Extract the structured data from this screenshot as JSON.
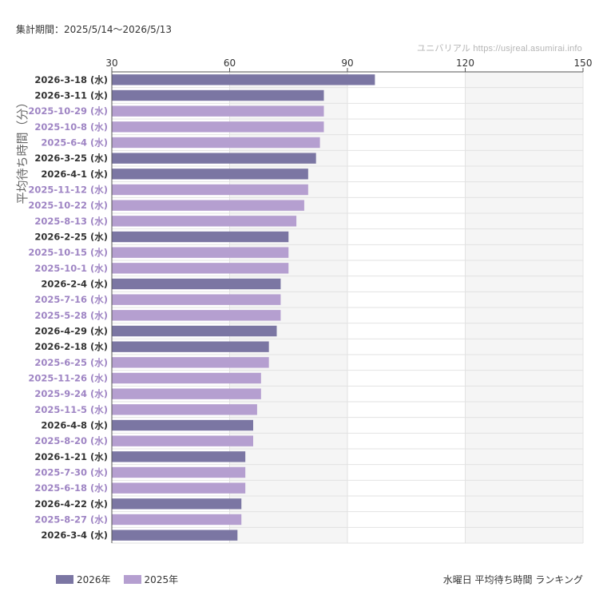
{
  "header": {
    "period": "集計期間：2025/5/14〜2026/5/13",
    "source": "ユニバリアル  https://usjreal.asumirai.info"
  },
  "footer": {
    "title": "水曜日 平均待ち時間 ランキング"
  },
  "colors": {
    "y2026": "#7b76a3",
    "y2025": "#b59fd0",
    "label2026": "#333333",
    "label2025": "#9f85c4",
    "band": "#f5f5f5",
    "grid": "#e2e2e2"
  },
  "chart_data": {
    "type": "bar",
    "orientation": "horizontal",
    "xlim": [
      30,
      150
    ],
    "xticks": [
      30,
      60,
      90,
      120,
      150
    ],
    "xtick_labels": [
      "30",
      "60",
      "90",
      "120",
      "150"
    ],
    "ylabel": "平均待ち時間（分）",
    "xlabel": "",
    "title": "",
    "grid": true,
    "legend": {
      "position": "bottom-left",
      "entries": [
        {
          "name": "2026年",
          "color": "#7b76a3"
        },
        {
          "name": "2025年",
          "color": "#b59fd0"
        }
      ]
    },
    "categories": [
      "2026-3-18 (水)",
      "2026-3-11 (水)",
      "2025-10-29 (水)",
      "2025-10-8 (水)",
      "2025-6-4 (水)",
      "2026-3-25 (水)",
      "2026-4-1 (水)",
      "2025-11-12 (水)",
      "2025-10-22 (水)",
      "2025-8-13 (水)",
      "2026-2-25 (水)",
      "2025-10-15 (水)",
      "2025-10-1 (水)",
      "2026-2-4 (水)",
      "2025-7-16 (水)",
      "2025-5-28 (水)",
      "2026-4-29 (水)",
      "2026-2-18 (水)",
      "2025-6-25 (水)",
      "2025-11-26 (水)",
      "2025-9-24 (水)",
      "2025-11-5 (水)",
      "2026-4-8 (水)",
      "2025-8-20 (水)",
      "2026-1-21 (水)",
      "2025-7-30 (水)",
      "2025-6-18 (水)",
      "2026-4-22 (水)",
      "2025-8-27 (水)",
      "2026-3-4 (水)"
    ],
    "values": [
      97,
      84,
      84,
      84,
      83,
      82,
      80,
      80,
      79,
      77,
      75,
      75,
      75,
      73,
      73,
      73,
      72,
      70,
      70,
      68,
      68,
      67,
      66,
      66,
      64,
      64,
      64,
      63,
      63,
      62
    ],
    "years": [
      "2026",
      "2026",
      "2025",
      "2025",
      "2025",
      "2026",
      "2026",
      "2025",
      "2025",
      "2025",
      "2026",
      "2025",
      "2025",
      "2026",
      "2025",
      "2025",
      "2026",
      "2026",
      "2025",
      "2025",
      "2025",
      "2025",
      "2026",
      "2025",
      "2026",
      "2025",
      "2025",
      "2026",
      "2025",
      "2026"
    ]
  }
}
